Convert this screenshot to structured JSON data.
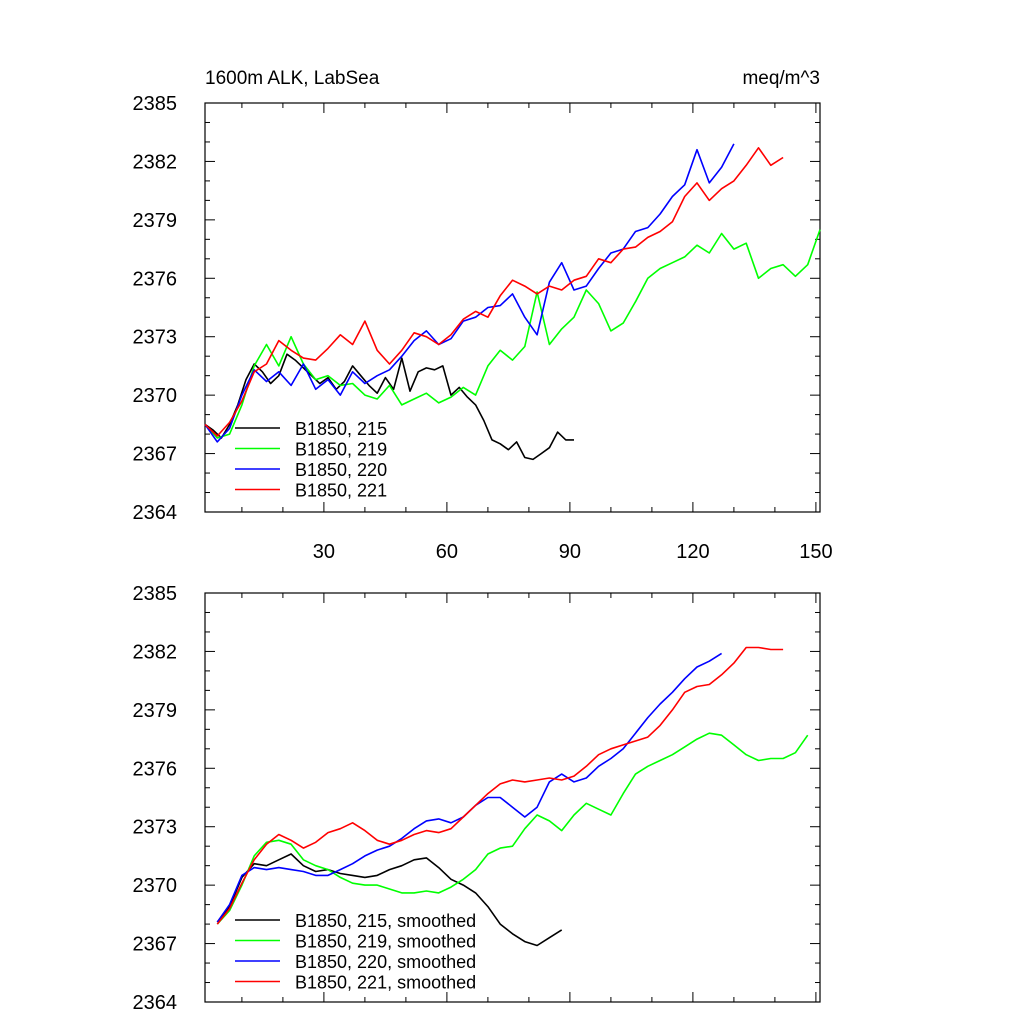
{
  "chart_data": [
    {
      "type": "line",
      "title": "1600m ALK, LabSea",
      "units": "meq/m^3",
      "xlim": [
        1,
        151
      ],
      "ylim": [
        2364,
        2385
      ],
      "xticks": [
        30,
        60,
        90,
        120,
        150
      ],
      "xtick_labels": [
        "30",
        "60",
        "90",
        "120",
        "150"
      ],
      "yticks": [
        2364,
        2367,
        2370,
        2373,
        2376,
        2379,
        2382,
        2385
      ],
      "ytick_labels": [
        "2364",
        "2367",
        "2370",
        "2373",
        "2376",
        "2379",
        "2382",
        "2385"
      ],
      "legend_position": "bottom-left",
      "series": [
        {
          "name": "B1850, 215",
          "color": "#000000",
          "x": [
            1,
            3,
            5,
            7,
            9,
            11,
            13,
            15,
            17,
            19,
            21,
            23,
            25,
            27,
            29,
            31,
            33,
            35,
            37,
            39,
            41,
            43,
            45,
            47,
            49,
            51,
            53,
            55,
            57,
            59,
            61,
            63,
            65,
            67,
            69,
            71,
            73,
            75,
            77,
            79,
            81,
            83,
            85,
            87,
            89,
            91
          ],
          "y": [
            2368.5,
            2368.2,
            2367.8,
            2368.5,
            2369.5,
            2370.8,
            2371.6,
            2371.2,
            2370.6,
            2371.0,
            2372.1,
            2371.8,
            2371.4,
            2371.0,
            2370.6,
            2370.9,
            2370.3,
            2370.7,
            2371.5,
            2371.0,
            2370.5,
            2370.1,
            2370.9,
            2370.3,
            2371.9,
            2370.2,
            2371.2,
            2371.4,
            2371.3,
            2371.5,
            2370.0,
            2370.4,
            2369.9,
            2369.5,
            2368.7,
            2367.7,
            2367.5,
            2367.2,
            2367.6,
            2366.8,
            2366.7,
            2367.0,
            2367.3,
            2368.1,
            2367.7,
            2367.7
          ]
        },
        {
          "name": "B1850, 219",
          "color": "#00ff00",
          "x": [
            1,
            4,
            7,
            10,
            13,
            16,
            19,
            22,
            25,
            28,
            31,
            34,
            37,
            40,
            43,
            46,
            49,
            52,
            55,
            58,
            61,
            64,
            67,
            70,
            73,
            76,
            79,
            82,
            85,
            88,
            91,
            94,
            97,
            100,
            103,
            106,
            109,
            112,
            115,
            118,
            121,
            124,
            127,
            130,
            133,
            136,
            139,
            142,
            145,
            148,
            151
          ],
          "y": [
            2368.5,
            2367.8,
            2368.0,
            2369.5,
            2371.5,
            2372.6,
            2371.5,
            2373.0,
            2371.6,
            2370.8,
            2371.0,
            2370.5,
            2370.6,
            2370.0,
            2369.8,
            2370.5,
            2369.5,
            2369.8,
            2370.1,
            2369.6,
            2369.9,
            2370.4,
            2370.0,
            2371.5,
            2372.3,
            2371.8,
            2372.5,
            2375.3,
            2372.6,
            2373.4,
            2374.0,
            2375.4,
            2374.7,
            2373.3,
            2373.7,
            2374.8,
            2376.0,
            2376.5,
            2376.8,
            2377.1,
            2377.7,
            2377.3,
            2378.3,
            2377.5,
            2377.8,
            2376.0,
            2376.5,
            2376.7,
            2376.1,
            2376.7,
            2378.5
          ]
        },
        {
          "name": "B1850, 220",
          "color": "#0000ff",
          "x": [
            1,
            4,
            7,
            10,
            13,
            16,
            19,
            22,
            25,
            28,
            31,
            34,
            37,
            40,
            43,
            46,
            49,
            52,
            55,
            58,
            61,
            64,
            67,
            70,
            73,
            76,
            79,
            82,
            85,
            88,
            91,
            94,
            97,
            100,
            103,
            106,
            109,
            112,
            115,
            118,
            121,
            124,
            127,
            130
          ],
          "y": [
            2368.5,
            2367.6,
            2368.3,
            2370.0,
            2371.3,
            2370.7,
            2371.2,
            2370.5,
            2371.6,
            2370.3,
            2370.8,
            2370.0,
            2371.2,
            2370.6,
            2371.0,
            2371.3,
            2372.0,
            2372.8,
            2373.3,
            2372.6,
            2372.9,
            2373.8,
            2374.0,
            2374.5,
            2374.6,
            2375.2,
            2374.0,
            2373.1,
            2375.8,
            2376.8,
            2375.4,
            2375.6,
            2376.5,
            2377.3,
            2377.5,
            2378.4,
            2378.6,
            2379.3,
            2380.2,
            2380.8,
            2382.6,
            2380.9,
            2381.7,
            2382.9
          ]
        },
        {
          "name": "B1850, 221",
          "color": "#ff0000",
          "x": [
            1,
            4,
            7,
            10,
            13,
            16,
            19,
            22,
            25,
            28,
            31,
            34,
            37,
            40,
            43,
            46,
            49,
            52,
            55,
            58,
            61,
            64,
            67,
            70,
            73,
            76,
            79,
            82,
            85,
            88,
            91,
            94,
            97,
            100,
            103,
            106,
            109,
            112,
            115,
            118,
            121,
            124,
            127,
            130,
            133,
            136,
            139,
            142
          ],
          "y": [
            2368.5,
            2367.9,
            2368.6,
            2369.7,
            2371.2,
            2371.6,
            2372.8,
            2372.3,
            2371.9,
            2371.8,
            2372.4,
            2373.1,
            2372.6,
            2373.8,
            2372.3,
            2371.6,
            2372.3,
            2373.2,
            2373.0,
            2372.6,
            2373.1,
            2373.9,
            2374.3,
            2374.0,
            2375.1,
            2375.9,
            2375.6,
            2375.2,
            2375.6,
            2375.4,
            2375.9,
            2376.1,
            2377.0,
            2376.8,
            2377.5,
            2377.6,
            2378.1,
            2378.4,
            2378.9,
            2380.2,
            2380.9,
            2380.0,
            2380.6,
            2381.0,
            2381.8,
            2382.7,
            2381.8,
            2382.2
          ]
        }
      ]
    },
    {
      "type": "line",
      "title": "",
      "units": "",
      "xlim": [
        1,
        151
      ],
      "ylim": [
        2364,
        2385
      ],
      "xticks": [
        30,
        60,
        90,
        120,
        150
      ],
      "xtick_labels": [],
      "yticks": [
        2364,
        2367,
        2370,
        2373,
        2376,
        2379,
        2382,
        2385
      ],
      "ytick_labels": [
        "2364",
        "2367",
        "2370",
        "2373",
        "2376",
        "2379",
        "2382",
        "2385"
      ],
      "legend_position": "bottom-left",
      "series": [
        {
          "name": "B1850, 215, smoothed",
          "color": "#000000",
          "x": [
            4,
            7,
            10,
            13,
            16,
            19,
            22,
            25,
            28,
            31,
            34,
            37,
            40,
            43,
            46,
            49,
            52,
            55,
            58,
            61,
            64,
            67,
            70,
            73,
            76,
            79,
            82,
            85,
            88
          ],
          "y": [
            2368.1,
            2368.9,
            2370.4,
            2371.1,
            2371.0,
            2371.3,
            2371.6,
            2371.0,
            2370.7,
            2370.8,
            2370.6,
            2370.5,
            2370.4,
            2370.5,
            2370.8,
            2371.0,
            2371.3,
            2371.4,
            2370.9,
            2370.3,
            2370.0,
            2369.6,
            2368.9,
            2368.0,
            2367.5,
            2367.1,
            2366.9,
            2367.3,
            2367.7
          ]
        },
        {
          "name": "B1850, 219, smoothed",
          "color": "#00ff00",
          "x": [
            4,
            7,
            10,
            13,
            16,
            19,
            22,
            25,
            28,
            31,
            34,
            37,
            40,
            43,
            46,
            49,
            52,
            55,
            58,
            61,
            64,
            67,
            70,
            73,
            76,
            79,
            82,
            85,
            88,
            91,
            94,
            97,
            100,
            103,
            106,
            109,
            112,
            115,
            118,
            121,
            124,
            127,
            130,
            133,
            136,
            139,
            142,
            145,
            148
          ],
          "y": [
            2368.0,
            2368.7,
            2370.0,
            2371.5,
            2372.2,
            2372.3,
            2372.1,
            2371.3,
            2371.0,
            2370.8,
            2370.4,
            2370.1,
            2370.0,
            2370.0,
            2369.8,
            2369.6,
            2369.6,
            2369.7,
            2369.6,
            2369.9,
            2370.3,
            2370.8,
            2371.6,
            2371.9,
            2372.0,
            2372.9,
            2373.6,
            2373.3,
            2372.8,
            2373.6,
            2374.2,
            2373.9,
            2373.6,
            2374.7,
            2375.7,
            2376.1,
            2376.4,
            2376.7,
            2377.1,
            2377.5,
            2377.8,
            2377.7,
            2377.2,
            2376.7,
            2376.4,
            2376.5,
            2376.5,
            2376.8,
            2377.7
          ]
        },
        {
          "name": "B1850, 220, smoothed",
          "color": "#0000ff",
          "x": [
            4,
            7,
            10,
            13,
            16,
            19,
            22,
            25,
            28,
            31,
            34,
            37,
            40,
            43,
            46,
            49,
            52,
            55,
            58,
            61,
            64,
            67,
            70,
            73,
            76,
            79,
            82,
            85,
            88,
            91,
            94,
            97,
            100,
            103,
            106,
            109,
            112,
            115,
            118,
            121,
            124,
            127
          ],
          "y": [
            2368.1,
            2369.0,
            2370.5,
            2370.9,
            2370.8,
            2370.9,
            2370.8,
            2370.7,
            2370.5,
            2370.5,
            2370.8,
            2371.1,
            2371.5,
            2371.8,
            2372.0,
            2372.4,
            2372.9,
            2373.3,
            2373.4,
            2373.2,
            2373.5,
            2374.1,
            2374.5,
            2374.5,
            2374.0,
            2373.5,
            2374.0,
            2375.3,
            2375.7,
            2375.3,
            2375.5,
            2376.1,
            2376.5,
            2377.0,
            2377.8,
            2378.6,
            2379.3,
            2379.9,
            2380.6,
            2381.2,
            2381.5,
            2381.9
          ]
        },
        {
          "name": "B1850, 221, smoothed",
          "color": "#ff0000",
          "x": [
            4,
            7,
            10,
            13,
            16,
            19,
            22,
            25,
            28,
            31,
            34,
            37,
            40,
            43,
            46,
            49,
            52,
            55,
            58,
            61,
            64,
            67,
            70,
            73,
            76,
            79,
            82,
            85,
            88,
            91,
            94,
            97,
            100,
            103,
            106,
            109,
            112,
            115,
            118,
            121,
            124,
            127,
            130,
            133,
            136,
            139,
            142
          ],
          "y": [
            2368.0,
            2368.8,
            2370.1,
            2371.3,
            2372.1,
            2372.6,
            2372.3,
            2371.9,
            2372.2,
            2372.7,
            2372.9,
            2373.2,
            2372.8,
            2372.3,
            2372.1,
            2372.3,
            2372.6,
            2372.8,
            2372.7,
            2372.9,
            2373.5,
            2374.1,
            2374.7,
            2375.2,
            2375.4,
            2375.3,
            2375.4,
            2375.5,
            2375.4,
            2375.6,
            2376.1,
            2376.7,
            2377.0,
            2377.2,
            2377.4,
            2377.6,
            2378.2,
            2379.0,
            2379.9,
            2380.2,
            2380.3,
            2380.8,
            2381.4,
            2382.2,
            2382.2,
            2382.1,
            2382.1
          ]
        }
      ]
    }
  ]
}
